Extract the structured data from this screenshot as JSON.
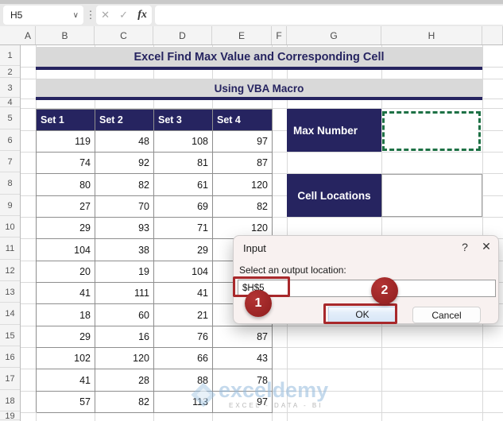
{
  "toolbar": {
    "name_box": "H5",
    "formula_value": "",
    "chevron_icon": "∨",
    "dots_icon": "⋮",
    "cancel_icon": "✕",
    "enter_icon": "✓",
    "fx_icon": "fx"
  },
  "grid": {
    "column_headers": [
      "A",
      "B",
      "C",
      "D",
      "E",
      "F",
      "G",
      "H"
    ],
    "row_headers": [
      "1",
      "2",
      "3",
      "4",
      "5",
      "6",
      "7",
      "8",
      "9",
      "10",
      "11",
      "12",
      "13",
      "14",
      "15",
      "16",
      "17",
      "18",
      "19"
    ]
  },
  "banners": {
    "title": "Excel Find Max Value and Corresponding Cell",
    "subtitle": "Using VBA Macro"
  },
  "table": {
    "headers": [
      "Set 1",
      "Set 2",
      "Set 3",
      "Set 4"
    ],
    "rows": [
      [
        119,
        48,
        108,
        97
      ],
      [
        74,
        92,
        81,
        87
      ],
      [
        80,
        82,
        61,
        120
      ],
      [
        27,
        70,
        69,
        82
      ],
      [
        29,
        93,
        71,
        120
      ],
      [
        104,
        38,
        29,
        null
      ],
      [
        20,
        19,
        104,
        null
      ],
      [
        41,
        111,
        41,
        null
      ],
      [
        18,
        60,
        21,
        null
      ],
      [
        29,
        16,
        76,
        87
      ],
      [
        102,
        120,
        66,
        43
      ],
      [
        41,
        28,
        88,
        78
      ],
      [
        57,
        82,
        113,
        97
      ]
    ]
  },
  "output": {
    "max_number_label": "Max Number",
    "cell_locations_label": "Cell Locations"
  },
  "dialog": {
    "title": "Input",
    "help_icon": "?",
    "close_icon": "✕",
    "prompt": "Select an output location:",
    "input_value": "$H$5",
    "ok_label": "OK",
    "cancel_label": "Cancel"
  },
  "annotations": {
    "step1_label": "1",
    "step2_label": "2"
  },
  "watermark": {
    "brand": "exceldemy",
    "tagline": "EXCEL - DATA - BI"
  },
  "colors": {
    "navy": "#262460",
    "banner_gray": "#D9D9D9",
    "selection_green": "#1E7145",
    "annotation_red": "#A8282B",
    "ok_button_blue": "#D7E6F6"
  }
}
